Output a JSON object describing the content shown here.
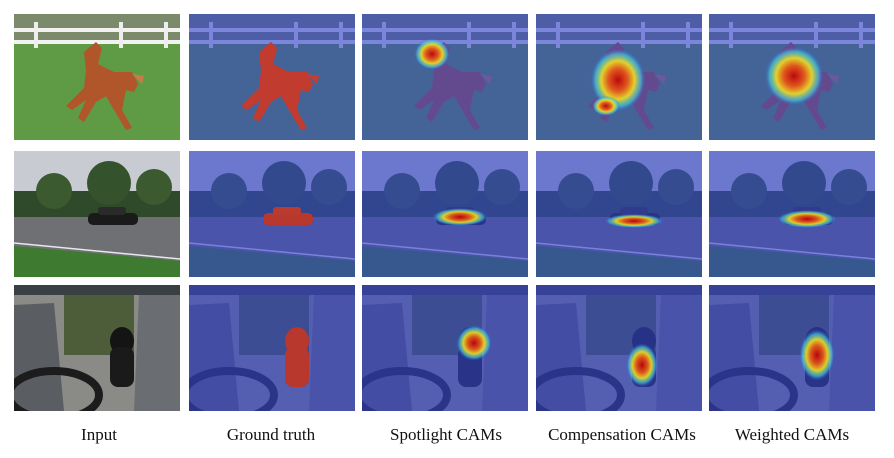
{
  "columns": [
    {
      "label": "Input",
      "kind": "input"
    },
    {
      "label": "Ground truth",
      "kind": "gt"
    },
    {
      "label": "Spotlight CAMs",
      "kind": "spot"
    },
    {
      "label": "Compensation CAMs",
      "kind": "comp"
    },
    {
      "label": "Weighted CAMs",
      "kind": "weighted"
    }
  ],
  "rows": [
    {
      "scene": "horse-icon"
    },
    {
      "scene": "car-icon"
    },
    {
      "scene": "dog-icon"
    }
  ],
  "colors": {
    "overlay_blue": "#3344cc",
    "gt_red": "#d23a1e",
    "heat_red": "#d01010",
    "heat_yellow": "#f0e020",
    "heat_cyan": "#40d0e0"
  }
}
